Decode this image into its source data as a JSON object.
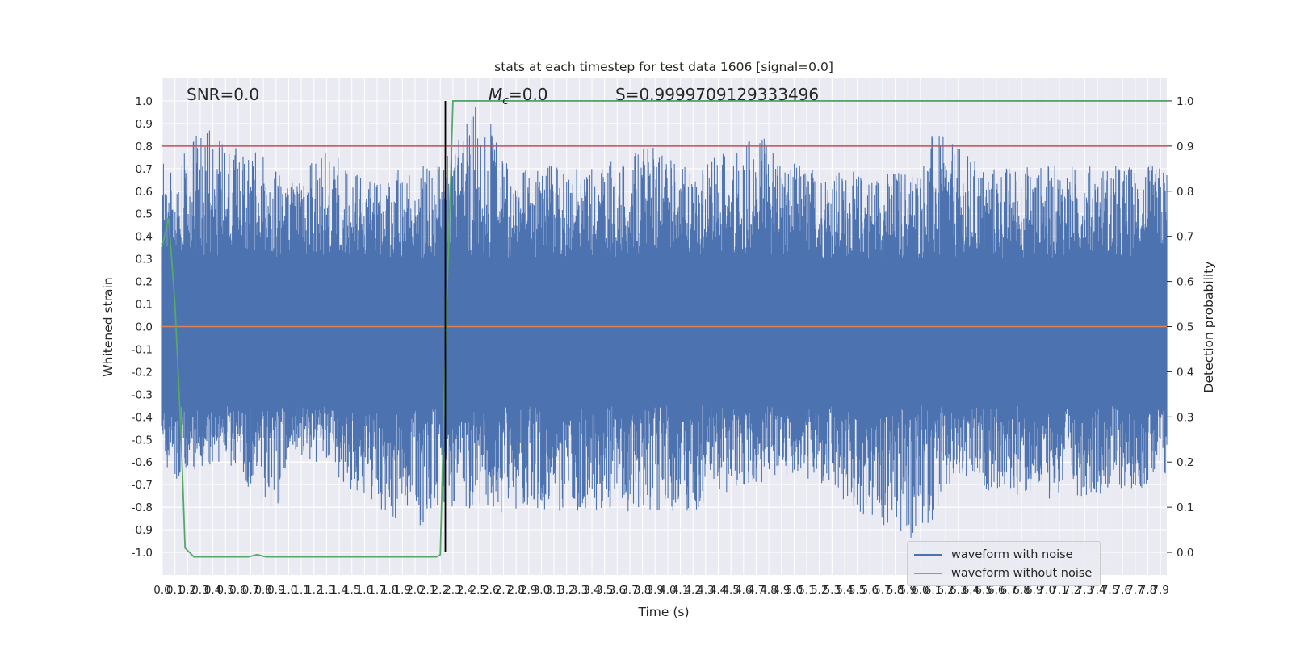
{
  "chart_data": {
    "type": "line",
    "title": "stats at each timestep for test data 1606 [signal=0.0]",
    "xlabel": "Time (s)",
    "ylabel": "Whitened strain",
    "y2label": "Detection probability",
    "xlim": [
      0.0,
      7.95
    ],
    "ylim": [
      -1.1,
      1.1
    ],
    "y2lim": [
      -0.05,
      1.05
    ],
    "x_ticks": [
      0.0,
      0.1,
      0.2,
      0.3,
      0.4,
      0.5,
      0.6,
      0.7,
      0.8,
      0.9,
      1.0,
      1.1,
      1.2,
      1.3,
      1.4,
      1.5,
      1.6,
      1.7,
      1.8,
      1.9,
      2.0,
      2.1,
      2.2,
      2.3,
      2.4,
      2.5,
      2.6,
      2.7,
      2.8,
      2.9,
      3.0,
      3.1,
      3.2,
      3.3,
      3.4,
      3.5,
      3.6,
      3.7,
      3.8,
      3.9,
      4.0,
      4.1,
      4.2,
      4.3,
      4.4,
      4.5,
      4.6,
      4.7,
      4.8,
      4.9,
      5.0,
      5.1,
      5.2,
      5.3,
      5.4,
      5.5,
      5.6,
      5.7,
      5.8,
      5.9,
      6.0,
      6.1,
      6.2,
      6.3,
      6.4,
      6.5,
      6.6,
      6.7,
      6.8,
      6.9,
      7.0,
      7.1,
      7.2,
      7.3,
      7.4,
      7.5,
      7.6,
      7.7,
      7.8,
      7.9
    ],
    "y_ticks": [
      1.0,
      0.9,
      0.8,
      0.7,
      0.6,
      0.5,
      0.4,
      0.3,
      0.2,
      0.1,
      0.0,
      -0.1,
      -0.2,
      -0.3,
      -0.4,
      -0.5,
      -0.6,
      -0.7,
      -0.8,
      -0.9,
      -1.0
    ],
    "y2_ticks": [
      1.0,
      0.9,
      0.8,
      0.7,
      0.6,
      0.5,
      0.4,
      0.3,
      0.2,
      0.1,
      0.0
    ],
    "annotations": {
      "snr": "SNR=0.0",
      "mc_symbol": "M",
      "mc_sub": "c",
      "mc_value": "=0.0",
      "s": "S=0.9999709129333496"
    },
    "vertical_marker_x": 2.24,
    "threshold_y2": 0.9,
    "noise_envelope": {
      "upper": [
        [
          0.0,
          0.75
        ],
        [
          0.1,
          0.7
        ],
        [
          0.3,
          0.93
        ],
        [
          0.5,
          0.82
        ],
        [
          0.8,
          0.78
        ],
        [
          1.0,
          0.65
        ],
        [
          1.3,
          0.79
        ],
        [
          1.6,
          0.65
        ],
        [
          2.0,
          0.72
        ],
        [
          2.2,
          0.72
        ],
        [
          2.5,
          1.0
        ],
        [
          2.8,
          0.7
        ],
        [
          3.1,
          0.72
        ],
        [
          3.4,
          0.7
        ],
        [
          3.9,
          0.81
        ],
        [
          4.2,
          0.7
        ],
        [
          4.7,
          0.86
        ],
        [
          5.0,
          0.73
        ],
        [
          5.3,
          0.7
        ],
        [
          5.6,
          0.68
        ],
        [
          6.0,
          0.72
        ],
        [
          6.1,
          0.87
        ],
        [
          6.5,
          0.72
        ],
        [
          7.0,
          0.72
        ],
        [
          7.5,
          0.72
        ],
        [
          7.95,
          0.72
        ]
      ],
      "lower": [
        [
          0.0,
          -0.5
        ],
        [
          0.05,
          -0.7
        ],
        [
          0.3,
          -0.62
        ],
        [
          0.5,
          -0.6
        ],
        [
          0.9,
          -0.86
        ],
        [
          1.0,
          -0.55
        ],
        [
          1.3,
          -0.62
        ],
        [
          1.55,
          -0.75
        ],
        [
          2.05,
          -0.92
        ],
        [
          2.2,
          -0.8
        ],
        [
          2.4,
          -0.82
        ],
        [
          2.9,
          -0.84
        ],
        [
          3.3,
          -0.82
        ],
        [
          4.2,
          -0.82
        ],
        [
          5.0,
          -0.65
        ],
        [
          5.7,
          -0.91
        ],
        [
          5.95,
          -0.97
        ],
        [
          6.3,
          -0.7
        ],
        [
          6.9,
          -0.77
        ],
        [
          7.3,
          -0.75
        ],
        [
          7.95,
          -0.7
        ]
      ]
    },
    "series": [
      {
        "name": "waveform with noise",
        "color": "#4c72b0"
      },
      {
        "name": "waveform without noise",
        "color": "#dd8452",
        "values": [
          [
            0.0,
            0.0
          ],
          [
            7.95,
            0.0
          ]
        ]
      },
      {
        "color": "#55a868",
        "axis": "right",
        "values": [
          [
            0.0,
            0.68
          ],
          [
            0.05,
            0.74
          ],
          [
            0.1,
            0.55
          ],
          [
            0.15,
            0.25
          ],
          [
            0.18,
            0.01
          ],
          [
            0.25,
            -0.01
          ],
          [
            0.4,
            -0.01
          ],
          [
            0.55,
            -0.01
          ],
          [
            0.68,
            -0.01
          ],
          [
            0.75,
            -0.005
          ],
          [
            0.82,
            -0.01
          ],
          [
            1.0,
            -0.01
          ],
          [
            1.5,
            -0.01
          ],
          [
            2.0,
            -0.01
          ],
          [
            2.17,
            -0.01
          ],
          [
            2.2,
            -0.005
          ],
          [
            2.25,
            0.55
          ],
          [
            2.28,
            0.8
          ],
          [
            2.3,
            1.0
          ],
          [
            7.95,
            1.0
          ]
        ]
      }
    ],
    "legend_position": "lower-right",
    "grid": true
  }
}
